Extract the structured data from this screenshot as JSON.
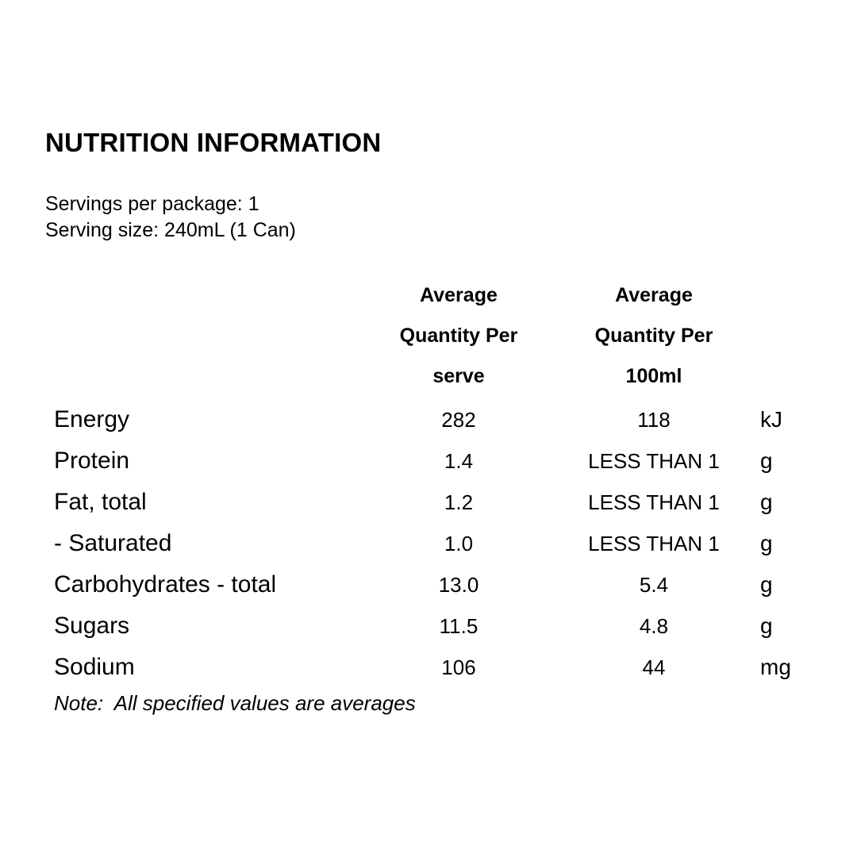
{
  "page": {
    "background_color": "#ffffff",
    "text_color": "#000000"
  },
  "title": "NUTRITION INFORMATION",
  "serving_info": {
    "servings_per_package": "Servings per package: 1",
    "serving_size": "Serving size: 240mL (1 Can)"
  },
  "table": {
    "columns": {
      "per_serve": {
        "line1": "Average",
        "line2": "Quantity Per",
        "line3": "serve"
      },
      "per_100ml": {
        "line1": "Average",
        "line2": "Quantity Per",
        "line3": "100ml"
      }
    },
    "rows": [
      {
        "label": "Energy",
        "per_serve": "282",
        "per_100ml": "118",
        "unit": "kJ"
      },
      {
        "label": "Protein",
        "per_serve": "1.4",
        "per_100ml": "LESS THAN 1",
        "unit": "g"
      },
      {
        "label": "Fat, total",
        "per_serve": "1.2",
        "per_100ml": "LESS THAN 1",
        "unit": "g"
      },
      {
        "label": "- Saturated",
        "per_serve": "1.0",
        "per_100ml": "LESS THAN 1",
        "unit": "g"
      },
      {
        "label": "Carbohydrates - total",
        "per_serve": "13.0",
        "per_100ml": "5.4",
        "unit": "g"
      },
      {
        "label": "Sugars",
        "per_serve": "11.5",
        "per_100ml": "4.8",
        "unit": "g"
      },
      {
        "label": "Sodium",
        "per_serve": "106",
        "per_100ml": "44",
        "unit": "mg"
      }
    ]
  },
  "note": "Note:  All specified values are averages"
}
